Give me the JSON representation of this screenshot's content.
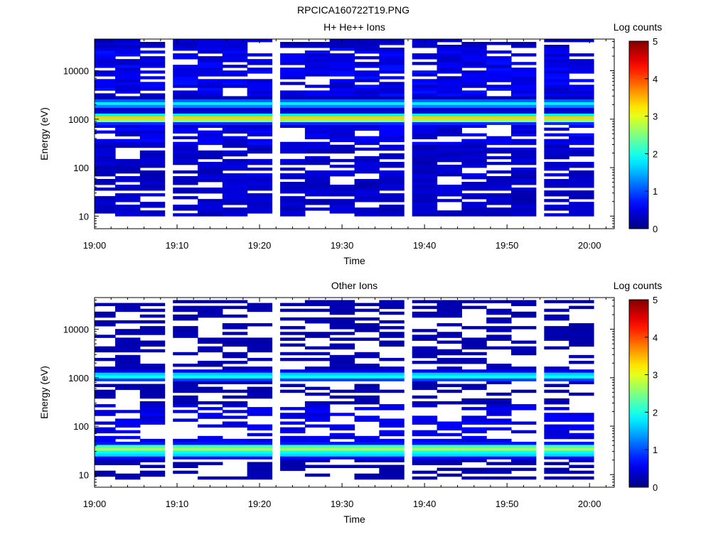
{
  "figure_title": "RPCICA160722T19.PNG",
  "chart_data": [
    {
      "type": "heatmap",
      "title": "H+ He++ Ions",
      "xlabel": "Time",
      "ylabel": "Energy (eV)",
      "colorbar_label": "Log counts",
      "x_range": [
        "19:00",
        "20:03"
      ],
      "x_ticks": [
        "19:00",
        "19:10",
        "19:20",
        "19:30",
        "19:40",
        "19:50",
        "20:00"
      ],
      "y_scale": "log",
      "y_range": [
        5.5,
        45000
      ],
      "y_ticks": [
        "10",
        "100",
        "1000",
        "10000"
      ],
      "colorbar_ticks": [
        "0",
        "1",
        "2",
        "3",
        "4",
        "5"
      ],
      "colorbar_range": [
        0,
        5
      ],
      "colormap": "jet",
      "time_columns": [
        "19:01",
        "19:04",
        "19:07",
        "19:11",
        "19:14",
        "19:17",
        "19:20",
        "19:24",
        "19:27",
        "19:30",
        "19:33",
        "19:36",
        "19:40",
        "19:43",
        "19:46",
        "19:49",
        "19:52",
        "19:56",
        "19:59"
      ],
      "peak_bands": [
        {
          "energy_eV": 1050,
          "log_counts": 3.4
        },
        {
          "energy_eV": 2100,
          "log_counts": 1.8
        }
      ],
      "data_energy_range": [
        10,
        45000
      ]
    },
    {
      "type": "heatmap",
      "title": "Other Ions",
      "xlabel": "Time",
      "ylabel": "Energy (eV)",
      "colorbar_label": "Log counts",
      "x_range": [
        "19:00",
        "20:03"
      ],
      "x_ticks": [
        "19:00",
        "19:10",
        "19:20",
        "19:30",
        "19:40",
        "19:50",
        "20:00"
      ],
      "y_scale": "log",
      "y_range": [
        5.5,
        45000
      ],
      "y_ticks": [
        "10",
        "100",
        "1000",
        "10000"
      ],
      "colorbar_ticks": [
        "0",
        "1",
        "2",
        "3",
        "4",
        "5"
      ],
      "colorbar_range": [
        0,
        5
      ],
      "colormap": "jet",
      "time_columns": [
        "19:01",
        "19:04",
        "19:07",
        "19:11",
        "19:14",
        "19:17",
        "19:20",
        "19:24",
        "19:27",
        "19:30",
        "19:33",
        "19:36",
        "19:40",
        "19:43",
        "19:46",
        "19:49",
        "19:52",
        "19:56",
        "19:59"
      ],
      "peak_bands": [
        {
          "energy_eV": 1100,
          "log_counts": 2.0
        },
        {
          "energy_eV": 35,
          "log_counts": 2.8
        },
        {
          "energy_eV": 28,
          "log_counts": 2.0
        }
      ],
      "data_energy_range": [
        8,
        40000
      ]
    }
  ]
}
